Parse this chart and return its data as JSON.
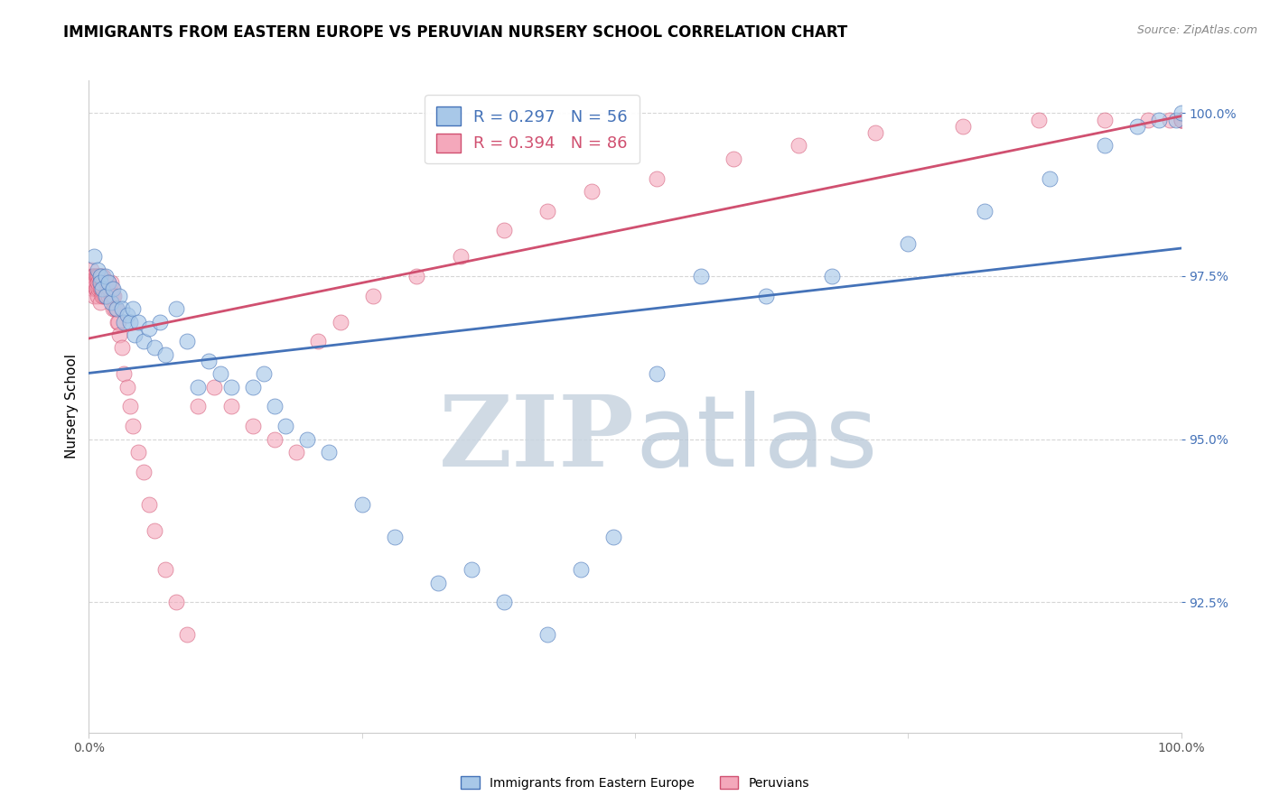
{
  "title": "IMMIGRANTS FROM EASTERN EUROPE VS PERUVIAN NURSERY SCHOOL CORRELATION CHART",
  "source_text": "Source: ZipAtlas.com",
  "ylabel": "Nursery School",
  "blue_label": "Immigrants from Eastern Europe",
  "pink_label": "Peruvians",
  "blue_R": 0.297,
  "blue_N": 56,
  "pink_R": 0.394,
  "pink_N": 86,
  "xlim": [
    0.0,
    1.0
  ],
  "ylim": [
    0.905,
    1.005
  ],
  "yticks": [
    0.925,
    0.95,
    0.975,
    1.0
  ],
  "ytick_labels": [
    "92.5%",
    "95.0%",
    "97.5%",
    "100.0%"
  ],
  "xtick_labels": [
    "0.0%",
    "100.0%"
  ],
  "blue_color": "#a8c8e8",
  "pink_color": "#f4a8bb",
  "blue_line_color": "#4472b8",
  "pink_line_color": "#d05070",
  "blue_edge_color": "#4472b8",
  "pink_edge_color": "#d05070",
  "watermark_zip_color": "#d0d8e8",
  "watermark_atlas_color": "#c0ccd8",
  "title_fontsize": 12,
  "axis_label_fontsize": 11,
  "tick_fontsize": 10,
  "legend_fontsize": 13,
  "blue_scatter_x": [
    0.005,
    0.008,
    0.01,
    0.01,
    0.012,
    0.015,
    0.015,
    0.018,
    0.02,
    0.022,
    0.025,
    0.028,
    0.03,
    0.032,
    0.035,
    0.038,
    0.04,
    0.042,
    0.045,
    0.05,
    0.055,
    0.06,
    0.065,
    0.07,
    0.08,
    0.09,
    0.1,
    0.11,
    0.12,
    0.13,
    0.15,
    0.16,
    0.17,
    0.18,
    0.2,
    0.22,
    0.25,
    0.28,
    0.32,
    0.35,
    0.38,
    0.42,
    0.45,
    0.48,
    0.52,
    0.56,
    0.62,
    0.68,
    0.75,
    0.82,
    0.88,
    0.93,
    0.96,
    0.98,
    0.995,
    1.0
  ],
  "blue_scatter_y": [
    0.978,
    0.976,
    0.975,
    0.974,
    0.973,
    0.975,
    0.972,
    0.974,
    0.971,
    0.973,
    0.97,
    0.972,
    0.97,
    0.968,
    0.969,
    0.968,
    0.97,
    0.966,
    0.968,
    0.965,
    0.967,
    0.964,
    0.968,
    0.963,
    0.97,
    0.965,
    0.958,
    0.962,
    0.96,
    0.958,
    0.958,
    0.96,
    0.955,
    0.952,
    0.95,
    0.948,
    0.94,
    0.935,
    0.928,
    0.93,
    0.925,
    0.92,
    0.93,
    0.935,
    0.96,
    0.975,
    0.972,
    0.975,
    0.98,
    0.985,
    0.99,
    0.995,
    0.998,
    0.999,
    0.999,
    1.0
  ],
  "pink_scatter_x": [
    0.001,
    0.002,
    0.003,
    0.003,
    0.004,
    0.004,
    0.005,
    0.005,
    0.005,
    0.006,
    0.006,
    0.007,
    0.007,
    0.008,
    0.008,
    0.008,
    0.009,
    0.009,
    0.01,
    0.01,
    0.01,
    0.011,
    0.011,
    0.012,
    0.012,
    0.013,
    0.013,
    0.014,
    0.014,
    0.015,
    0.015,
    0.016,
    0.016,
    0.017,
    0.018,
    0.018,
    0.019,
    0.02,
    0.02,
    0.021,
    0.022,
    0.022,
    0.023,
    0.024,
    0.025,
    0.026,
    0.027,
    0.028,
    0.03,
    0.032,
    0.035,
    0.038,
    0.04,
    0.045,
    0.05,
    0.055,
    0.06,
    0.07,
    0.08,
    0.09,
    0.1,
    0.115,
    0.13,
    0.15,
    0.17,
    0.19,
    0.21,
    0.23,
    0.26,
    0.3,
    0.34,
    0.38,
    0.42,
    0.46,
    0.52,
    0.59,
    0.65,
    0.72,
    0.8,
    0.87,
    0.93,
    0.97,
    0.99,
    1.0,
    1.0,
    1.0
  ],
  "pink_scatter_y": [
    0.975,
    0.976,
    0.975,
    0.974,
    0.975,
    0.973,
    0.975,
    0.974,
    0.972,
    0.975,
    0.973,
    0.975,
    0.973,
    0.975,
    0.974,
    0.972,
    0.975,
    0.973,
    0.975,
    0.973,
    0.971,
    0.975,
    0.973,
    0.975,
    0.972,
    0.975,
    0.973,
    0.974,
    0.972,
    0.974,
    0.972,
    0.974,
    0.972,
    0.973,
    0.974,
    0.972,
    0.973,
    0.974,
    0.972,
    0.973,
    0.972,
    0.97,
    0.972,
    0.97,
    0.97,
    0.968,
    0.968,
    0.966,
    0.964,
    0.96,
    0.958,
    0.955,
    0.952,
    0.948,
    0.945,
    0.94,
    0.936,
    0.93,
    0.925,
    0.92,
    0.955,
    0.958,
    0.955,
    0.952,
    0.95,
    0.948,
    0.965,
    0.968,
    0.972,
    0.975,
    0.978,
    0.982,
    0.985,
    0.988,
    0.99,
    0.993,
    0.995,
    0.997,
    0.998,
    0.999,
    0.999,
    0.999,
    0.999,
    0.999,
    0.999,
    0.999
  ]
}
